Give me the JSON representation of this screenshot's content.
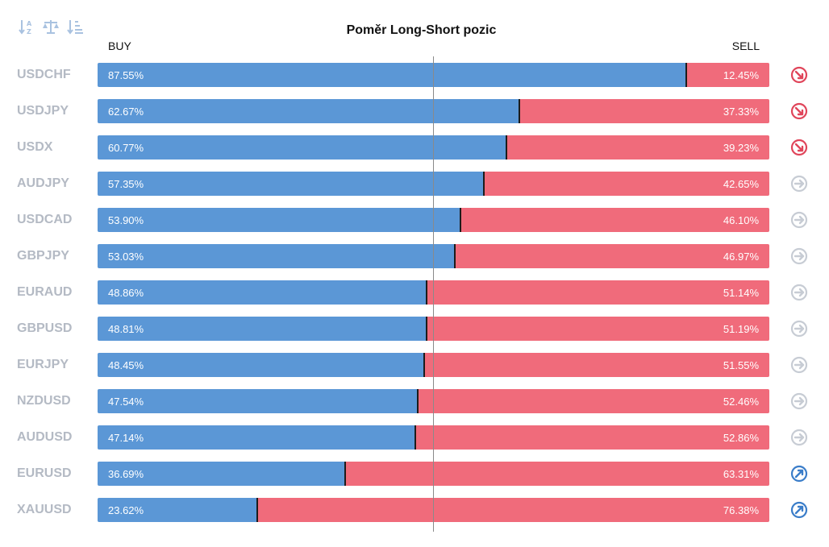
{
  "toolbar": {
    "sort_alpha_icon": "sort-alpha-icon",
    "balance_icon": "balance-scale-icon",
    "sort_desc_icon": "sort-desc-icon",
    "icon_color": "#a9c2e0"
  },
  "chart_data": {
    "type": "bar",
    "title": "Poměr Long-Short pozic",
    "left_label": "BUY",
    "right_label": "SELL",
    "stacked": true,
    "orientation": "horizontal",
    "ylim": [
      0,
      100
    ],
    "categories": [
      "USDCHF",
      "USDJPY",
      "USDX",
      "AUDJPY",
      "USDCAD",
      "GBPJPY",
      "EURAUD",
      "GBPUSD",
      "EURJPY",
      "NZDUSD",
      "AUDUSD",
      "EURUSD",
      "XAUUSD"
    ],
    "series": [
      {
        "name": "BUY",
        "color": "#5b97d6",
        "values": [
          87.55,
          62.67,
          60.77,
          57.35,
          53.9,
          53.03,
          48.86,
          48.81,
          48.45,
          47.54,
          47.14,
          36.69,
          23.62
        ]
      },
      {
        "name": "SELL",
        "color": "#f06b7b",
        "values": [
          12.45,
          37.33,
          39.23,
          42.65,
          46.1,
          46.97,
          51.14,
          51.19,
          51.55,
          52.46,
          52.86,
          63.31,
          76.38
        ]
      }
    ],
    "buy_labels": [
      "87.55%",
      "62.67%",
      "60.77%",
      "57.35%",
      "53.90%",
      "53.03%",
      "48.86%",
      "48.81%",
      "48.45%",
      "47.54%",
      "47.14%",
      "36.69%",
      "23.62%"
    ],
    "sell_labels": [
      "12.45%",
      "37.33%",
      "39.23%",
      "42.65%",
      "46.10%",
      "46.97%",
      "51.14%",
      "51.19%",
      "51.55%",
      "52.46%",
      "52.86%",
      "63.31%",
      "76.38%"
    ],
    "signals": [
      "down",
      "down",
      "down",
      "neutral",
      "neutral",
      "neutral",
      "neutral",
      "neutral",
      "neutral",
      "neutral",
      "neutral",
      "up",
      "up"
    ],
    "signal_colors": {
      "down": "#e0455a",
      "neutral": "#c7ccd4",
      "up": "#3a7dc9"
    }
  }
}
